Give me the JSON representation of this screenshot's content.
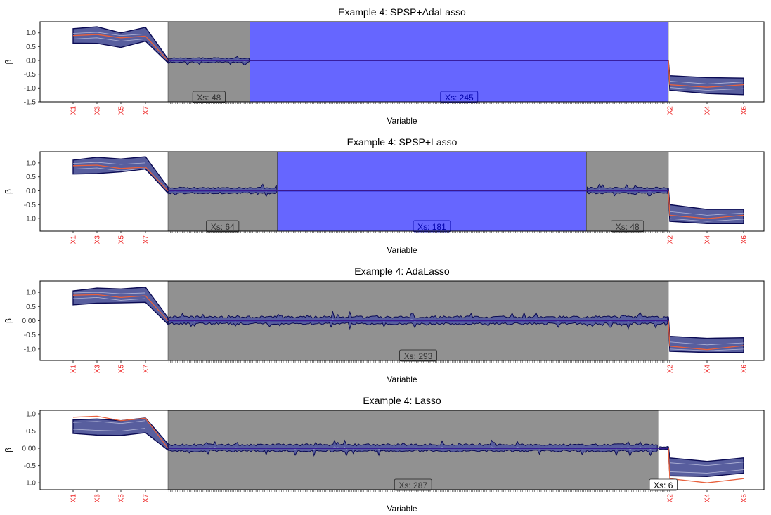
{
  "figure": {
    "type": "coefficient-path-panels"
  },
  "colors": {
    "grey_region": "#919191",
    "blue_region": "#6666ff",
    "band_fill": "#585e9e",
    "band_outline": "#0b0b54",
    "true_line": "#e8613d",
    "x_tick_label": "#ee2222",
    "zero_line": "#0000aa"
  },
  "chart_data": [
    {
      "type": "line",
      "title": "Example 4: SPSP+AdaLasso",
      "xlabel": "Variable",
      "ylabel": "β",
      "ylim": [
        -1.5,
        1.4
      ],
      "yticks": [
        1.0,
        0.5,
        0.0,
        -0.5,
        -1.0,
        -1.5
      ],
      "ytick_labels": [
        "1.0",
        "0.5",
        "0.0",
        "-0.5",
        "-1.0",
        "-1.5"
      ],
      "n_noise": 293,
      "true_values": {
        "x_left": [
          0.9,
          0.94,
          0.82,
          0.88
        ],
        "x_right": [
          -0.88,
          -0.97,
          -0.88
        ]
      },
      "band_left": {
        "upper": [
          1.15,
          1.22,
          1.0,
          1.2
        ],
        "lower": [
          0.63,
          0.62,
          0.47,
          0.7
        ]
      },
      "band_right": {
        "upper": [
          -0.55,
          -0.62,
          -0.64
        ],
        "lower": [
          -1.08,
          -1.2,
          -1.24
        ]
      },
      "band_left_inner": {
        "upper": [
          0.98,
          1.02,
          0.9,
          0.96
        ],
        "lower": [
          0.78,
          0.82,
          0.7,
          0.78
        ]
      },
      "band_right_inner": {
        "upper": [
          -0.75,
          -0.85,
          -0.78
        ],
        "lower": [
          -0.98,
          -1.08,
          -1.02
        ]
      },
      "regions": [
        {
          "kind": "grey",
          "start": 0,
          "count": 48,
          "label": "Xs: 48",
          "noise_amp": 0.16
        },
        {
          "kind": "blue",
          "start": 48,
          "count": 245,
          "label": "Xs: 245",
          "noise_amp": 0
        }
      ],
      "left_labels": [
        "X1",
        "X3",
        "X5",
        "X7"
      ],
      "right_labels": [
        "X2",
        "X4",
        "X6"
      ]
    },
    {
      "type": "line",
      "title": "Example 4: SPSP+Lasso",
      "xlabel": "Variable",
      "ylabel": "β",
      "ylim": [
        -1.45,
        1.4
      ],
      "yticks": [
        1.0,
        0.5,
        0.0,
        -0.5,
        -1.0
      ],
      "ytick_labels": [
        "1.0",
        "0.5",
        "0.0",
        "-0.5",
        "-1.0"
      ],
      "n_noise": 293,
      "true_values": {
        "x_left": [
          0.9,
          0.92,
          0.8,
          0.85
        ],
        "x_right": [
          -0.88,
          -1.0,
          -0.88
        ]
      },
      "band_left": {
        "upper": [
          1.1,
          1.2,
          1.14,
          1.22
        ],
        "lower": [
          0.6,
          0.62,
          0.68,
          0.78
        ]
      },
      "band_right": {
        "upper": [
          -0.5,
          -0.67,
          -0.67
        ],
        "lower": [
          -1.1,
          -1.18,
          -1.18
        ]
      },
      "band_left_inner": {
        "upper": [
          0.98,
          1.02,
          0.95,
          1.0
        ],
        "lower": [
          0.78,
          0.82,
          0.72,
          0.8
        ]
      },
      "band_right_inner": {
        "upper": [
          -0.75,
          -0.88,
          -0.8
        ],
        "lower": [
          -1.0,
          -1.1,
          -1.02
        ]
      },
      "regions": [
        {
          "kind": "grey",
          "start": 0,
          "count": 64,
          "label": "Xs: 64",
          "noise_amp": 0.2
        },
        {
          "kind": "blue",
          "start": 64,
          "count": 181,
          "label": "Xs: 181",
          "noise_amp": 0
        },
        {
          "kind": "grey",
          "start": 245,
          "count": 48,
          "label": "Xs: 48",
          "noise_amp": 0.2
        }
      ],
      "left_labels": [
        "X1",
        "X3",
        "X5",
        "X7"
      ],
      "right_labels": [
        "X2",
        "X4",
        "X6"
      ]
    },
    {
      "type": "line",
      "title": "Example 4: AdaLasso",
      "xlabel": "Variable",
      "ylabel": "β",
      "ylim": [
        -1.4,
        1.4
      ],
      "yticks": [
        1.0,
        0.5,
        0.0,
        -0.5,
        -1.0
      ],
      "ytick_labels": [
        "1.0",
        "0.5",
        "0.00",
        "-0.5",
        "-1.0"
      ],
      "n_noise": 293,
      "true_values": {
        "x_left": [
          0.9,
          0.92,
          0.82,
          0.88
        ],
        "x_right": [
          -0.9,
          -1.02,
          -0.88
        ]
      },
      "band_left": {
        "upper": [
          1.05,
          1.15,
          1.12,
          1.18
        ],
        "lower": [
          0.56,
          0.62,
          0.63,
          0.65
        ]
      },
      "band_right": {
        "upper": [
          -0.55,
          -0.62,
          -0.6
        ],
        "lower": [
          -1.08,
          -1.12,
          -1.12
        ]
      },
      "band_left_inner": {
        "upper": [
          0.98,
          1.0,
          0.95,
          0.98
        ],
        "lower": [
          0.78,
          0.82,
          0.72,
          0.78
        ]
      },
      "band_right_inner": {
        "upper": [
          -0.75,
          -0.85,
          -0.78
        ],
        "lower": [
          -1.0,
          -1.06,
          -1.0
        ]
      },
      "regions": [
        {
          "kind": "grey",
          "start": 0,
          "count": 293,
          "label": "Xs: 293",
          "noise_amp": 0.26
        }
      ],
      "left_labels": [
        "X1",
        "X3",
        "X5",
        "X7"
      ],
      "right_labels": [
        "X2",
        "X4",
        "X6"
      ]
    },
    {
      "type": "line",
      "title": "Example 4: Lasso",
      "xlabel": "Variable",
      "ylabel": "β",
      "ylim": [
        -1.2,
        1.1
      ],
      "yticks": [
        1.0,
        0.5,
        0.0,
        -0.5,
        -1.0
      ],
      "ytick_labels": [
        "1.0",
        "0.5",
        "0.00",
        "-0.5",
        "-1.0"
      ],
      "n_noise": 293,
      "true_values": {
        "x_left": [
          0.9,
          0.93,
          0.8,
          0.87
        ],
        "x_right": [
          -0.88,
          -1.0,
          -0.88
        ]
      },
      "band_left": {
        "upper": [
          0.82,
          0.85,
          0.8,
          0.88
        ],
        "lower": [
          0.43,
          0.38,
          0.37,
          0.45
        ]
      },
      "band_right": {
        "upper": [
          -0.28,
          -0.38,
          -0.28
        ],
        "lower": [
          -0.8,
          -0.82,
          -0.72
        ]
      },
      "band_left_inner": {
        "upper": [
          0.75,
          0.78,
          0.72,
          0.8
        ],
        "lower": [
          0.55,
          0.52,
          0.5,
          0.58
        ]
      },
      "band_right_inner": {
        "upper": [
          -0.42,
          -0.5,
          -0.4
        ],
        "lower": [
          -0.68,
          -0.72,
          -0.62
        ]
      },
      "regions": [
        {
          "kind": "grey",
          "start": 0,
          "count": 287,
          "label": "Xs: 287",
          "noise_amp": 0.2
        },
        {
          "kind": "white",
          "start": 287,
          "count": 6,
          "label": "Xs: 6",
          "noise_amp": 0.08
        }
      ],
      "left_labels": [
        "X1",
        "X3",
        "X5",
        "X7"
      ],
      "right_labels": [
        "X2",
        "X4",
        "X6"
      ]
    }
  ]
}
